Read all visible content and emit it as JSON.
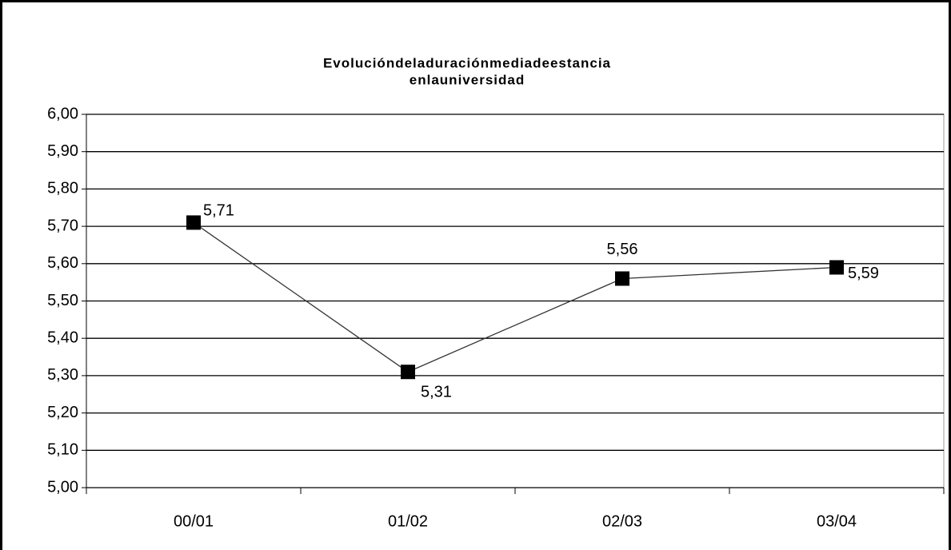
{
  "chart_data": {
    "type": "line",
    "title": [
      "Evolucióndeladuraciónmediadeestancia",
      "enlauniversidad"
    ],
    "categories": [
      "00/01",
      "01/02",
      "02/03",
      "03/04"
    ],
    "values": [
      5.71,
      5.31,
      5.56,
      5.59
    ],
    "value_labels": [
      "5,71",
      "5,31",
      "5,56",
      "5,59"
    ],
    "color": "#000000",
    "ylim": [
      5,
      6
    ],
    "yticks": [
      {
        "value": 5,
        "label": "5,00"
      },
      {
        "value": 5.1,
        "label": "5,10"
      },
      {
        "value": 5.2,
        "label": "5,20"
      },
      {
        "value": 5.3,
        "label": "5,30"
      },
      {
        "value": 5.4,
        "label": "5,40"
      },
      {
        "value": 5.5,
        "label": "5,50"
      },
      {
        "value": 5.6,
        "label": "5,60"
      },
      {
        "value": 5.7,
        "label": "5,70"
      },
      {
        "value": 5.8,
        "label": "5,80"
      },
      {
        "value": 5.9,
        "label": "5,90"
      },
      {
        "value": 6,
        "label": "6,00"
      }
    ],
    "grid": true
  }
}
